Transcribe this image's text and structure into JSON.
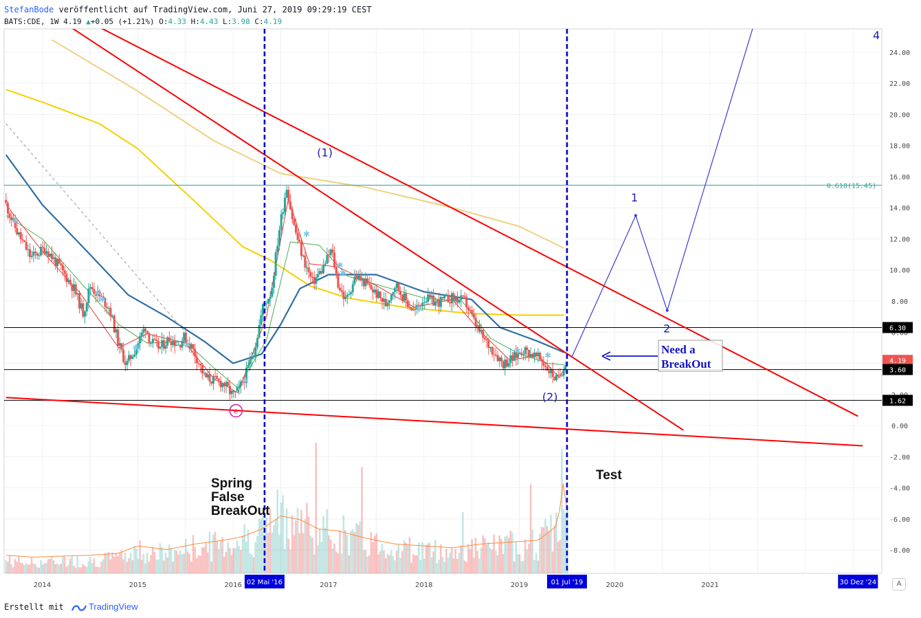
{
  "header": {
    "author": "StefanBode",
    "published": "veröffentlicht auf TradingView.com, Juni 27, 2019 09:29:19 CEST",
    "symbol": "BATS:CDE, 1W",
    "last": "4.19",
    "change": "+0.05 (+1.21%)",
    "o_label": "O:",
    "o_value": "4.33",
    "h_label": "H:",
    "h_value": "4.43",
    "l_label": "L:",
    "l_value": "3.98",
    "c_label": "C:",
    "c_value": "4.19"
  },
  "footer": {
    "created_with": "Erstellt mit",
    "brand": "TradingView",
    "auto_button": "A"
  },
  "colors": {
    "up": "#26a69a",
    "down": "#ef5350",
    "trend": "#ff0000",
    "vline": "#0000cc",
    "wave": "#3b3bd6",
    "ma_blue": "#2f6ea3",
    "ma_yellow": "#f5d000",
    "ma_tan": "#f0d080",
    "ema_green": "#4caf50",
    "ema_red": "#e53935",
    "fib": "#26a69a"
  },
  "chart_data": {
    "type": "candlestick",
    "ylim": [
      -9.5,
      25.5
    ],
    "yticks": [
      "24.00",
      "22.00",
      "20.00",
      "18.00",
      "16.00",
      "14.00",
      "12.00",
      "10.00",
      "8.00",
      "6.00",
      "4.00",
      "2.00",
      "0.00",
      "-2.00",
      "-4.00",
      "-6.00",
      "-8.00"
    ],
    "xticks": [
      "2014",
      "2015",
      "2016",
      "2017",
      "2018",
      "2019",
      "2020",
      "2021"
    ],
    "xtick_years": [
      2014,
      2015,
      2016,
      2017,
      2018,
      2019,
      2020,
      2021
    ],
    "xlim": [
      2013.6,
      2022.8
    ],
    "date_badges": [
      {
        "label": "02 Mai '16",
        "x": 2016.33
      },
      {
        "label": "01 Jul '19",
        "x": 2019.5
      },
      {
        "label": "30 Dez '24",
        "x": 2022.55
      }
    ],
    "price_badges": [
      {
        "label": "6.30",
        "y": 6.3,
        "kind": "line"
      },
      {
        "label": "4.19",
        "y": 4.19,
        "kind": "last"
      },
      {
        "label": "3.60",
        "y": 3.6,
        "kind": "line"
      },
      {
        "label": "1.62",
        "y": 1.62,
        "kind": "line"
      }
    ],
    "fib": {
      "label": "0.618(15.45)",
      "y": 15.45
    },
    "price_path": [
      [
        2013.62,
        14.5
      ],
      [
        2013.75,
        12.5
      ],
      [
        2013.9,
        10.8
      ],
      [
        2014.05,
        11.4
      ],
      [
        2014.2,
        10.2
      ],
      [
        2014.35,
        8.8
      ],
      [
        2014.45,
        7.2
      ],
      [
        2014.52,
        9.0
      ],
      [
        2014.62,
        8.3
      ],
      [
        2014.72,
        7.6
      ],
      [
        2014.82,
        5.2
      ],
      [
        2014.9,
        3.9
      ],
      [
        2015.0,
        5.0
      ],
      [
        2015.1,
        6.4
      ],
      [
        2015.15,
        5.4
      ],
      [
        2015.25,
        5.0
      ],
      [
        2015.35,
        5.6
      ],
      [
        2015.45,
        5.2
      ],
      [
        2015.5,
        5.7
      ],
      [
        2015.58,
        5.1
      ],
      [
        2015.65,
        4.2
      ],
      [
        2015.72,
        3.1
      ],
      [
        2015.82,
        2.9
      ],
      [
        2015.92,
        2.7
      ],
      [
        2016.02,
        1.9
      ],
      [
        2016.08,
        2.3
      ],
      [
        2016.15,
        3.2
      ],
      [
        2016.25,
        5.1
      ],
      [
        2016.33,
        7.6
      ],
      [
        2016.42,
        8.6
      ],
      [
        2016.5,
        12.5
      ],
      [
        2016.58,
        15.4
      ],
      [
        2016.65,
        13.0
      ],
      [
        2016.75,
        10.8
      ],
      [
        2016.85,
        9.2
      ],
      [
        2016.95,
        10.0
      ],
      [
        2017.05,
        11.3
      ],
      [
        2017.12,
        9.1
      ],
      [
        2017.2,
        8.0
      ],
      [
        2017.3,
        9.6
      ],
      [
        2017.4,
        9.2
      ],
      [
        2017.5,
        8.6
      ],
      [
        2017.62,
        7.8
      ],
      [
        2017.72,
        9.1
      ],
      [
        2017.82,
        8.1
      ],
      [
        2017.92,
        7.3
      ],
      [
        2018.02,
        8.2
      ],
      [
        2018.15,
        7.9
      ],
      [
        2018.3,
        8.2
      ],
      [
        2018.45,
        8.0
      ],
      [
        2018.55,
        6.6
      ],
      [
        2018.65,
        5.5
      ],
      [
        2018.75,
        4.8
      ],
      [
        2018.85,
        4.0
      ],
      [
        2018.95,
        4.3
      ],
      [
        2019.05,
        4.9
      ],
      [
        2019.15,
        4.6
      ],
      [
        2019.25,
        4.2
      ],
      [
        2019.35,
        3.4
      ],
      [
        2019.42,
        2.9
      ],
      [
        2019.47,
        3.6
      ],
      [
        2019.5,
        4.19
      ]
    ],
    "volume_path": [
      [
        2013.62,
        0.6
      ],
      [
        2013.9,
        0.5
      ],
      [
        2014.2,
        0.55
      ],
      [
        2014.5,
        0.6
      ],
      [
        2014.8,
        0.7
      ],
      [
        2015.0,
        1.1
      ],
      [
        2015.3,
        0.9
      ],
      [
        2015.6,
        1.2
      ],
      [
        2015.9,
        1.4
      ],
      [
        2016.1,
        1.6
      ],
      [
        2016.3,
        2.0
      ],
      [
        2016.5,
        2.7
      ],
      [
        2016.7,
        2.5
      ],
      [
        2016.9,
        2.0
      ],
      [
        2017.1,
        1.9
      ],
      [
        2017.4,
        1.5
      ],
      [
        2017.7,
        1.2
      ],
      [
        2018.0,
        1.1
      ],
      [
        2018.3,
        1.0
      ],
      [
        2018.6,
        1.2
      ],
      [
        2018.9,
        1.3
      ],
      [
        2019.2,
        1.4
      ],
      [
        2019.4,
        2.2
      ],
      [
        2019.47,
        4.8
      ],
      [
        2019.5,
        3.0
      ]
    ],
    "moving_averages": [
      {
        "name": "MA-long-tan",
        "color": "#f0d080",
        "pts": [
          [
            2014.1,
            24.8
          ],
          [
            2015.0,
            21.5
          ],
          [
            2015.8,
            18.3
          ],
          [
            2016.5,
            16.2
          ],
          [
            2017.4,
            15.3
          ],
          [
            2018.3,
            14.0
          ],
          [
            2019.0,
            12.8
          ],
          [
            2019.47,
            11.4
          ]
        ]
      },
      {
        "name": "MA-yellow",
        "color": "#f5d000",
        "pts": [
          [
            2013.62,
            21.6
          ],
          [
            2014.0,
            20.8
          ],
          [
            2014.6,
            19.4
          ],
          [
            2015.0,
            17.8
          ],
          [
            2015.6,
            14.4
          ],
          [
            2016.1,
            11.5
          ],
          [
            2016.4,
            10.6
          ],
          [
            2016.8,
            9.0
          ],
          [
            2017.2,
            8.2
          ],
          [
            2017.8,
            7.6
          ],
          [
            2018.5,
            7.2
          ],
          [
            2019.0,
            7.1
          ],
          [
            2019.47,
            7.1
          ]
        ]
      },
      {
        "name": "MA-blue",
        "color": "#2f6ea3",
        "pts": [
          [
            2013.62,
            17.4
          ],
          [
            2014.0,
            14.2
          ],
          [
            2014.5,
            11.0
          ],
          [
            2014.9,
            8.4
          ],
          [
            2015.3,
            7.0
          ],
          [
            2015.7,
            5.4
          ],
          [
            2016.0,
            4.0
          ],
          [
            2016.3,
            4.6
          ],
          [
            2016.5,
            6.5
          ],
          [
            2016.7,
            8.8
          ],
          [
            2017.0,
            9.7
          ],
          [
            2017.5,
            9.7
          ],
          [
            2018.0,
            8.6
          ],
          [
            2018.5,
            8.1
          ],
          [
            2018.8,
            6.3
          ],
          [
            2019.2,
            5.4
          ],
          [
            2019.47,
            4.7
          ]
        ]
      },
      {
        "name": "EMA-green",
        "color": "#4caf50",
        "pts": [
          [
            2013.62,
            13.5
          ],
          [
            2014.0,
            12.0
          ],
          [
            2014.4,
            9.2
          ],
          [
            2014.8,
            6.5
          ],
          [
            2015.1,
            5.3
          ],
          [
            2015.5,
            5.4
          ],
          [
            2015.8,
            3.7
          ],
          [
            2016.05,
            2.4
          ],
          [
            2016.35,
            5.5
          ],
          [
            2016.6,
            11.8
          ],
          [
            2016.9,
            11.6
          ],
          [
            2017.2,
            9.6
          ],
          [
            2017.6,
            8.9
          ],
          [
            2018.0,
            8.2
          ],
          [
            2018.4,
            8.0
          ],
          [
            2018.7,
            5.6
          ],
          [
            2019.0,
            4.6
          ],
          [
            2019.3,
            4.0
          ],
          [
            2019.47,
            3.9
          ]
        ]
      },
      {
        "name": "EMA-red",
        "color": "#e53935",
        "pts": [
          [
            2013.62,
            14.2
          ],
          [
            2014.0,
            11.2
          ],
          [
            2014.4,
            8.5
          ],
          [
            2014.8,
            5.0
          ],
          [
            2015.1,
            5.9
          ],
          [
            2015.5,
            5.3
          ],
          [
            2015.8,
            3.0
          ],
          [
            2016.05,
            2.1
          ],
          [
            2016.35,
            7.0
          ],
          [
            2016.58,
            14.6
          ],
          [
            2016.8,
            10.4
          ],
          [
            2017.1,
            10.2
          ],
          [
            2017.5,
            9.0
          ],
          [
            2017.9,
            7.6
          ],
          [
            2018.3,
            8.1
          ],
          [
            2018.6,
            6.0
          ],
          [
            2018.9,
            4.2
          ],
          [
            2019.2,
            4.5
          ],
          [
            2019.42,
            3.1
          ],
          [
            2019.5,
            3.9
          ]
        ]
      }
    ],
    "trendlines": [
      {
        "name": "upper-resistance",
        "from": [
          2014.6,
          25.6
        ],
        "to": [
          2022.55,
          0.6
        ],
        "color": "#ff0000"
      },
      {
        "name": "mid-resistance",
        "from": [
          2014.3,
          25.6
        ],
        "to": [
          2020.72,
          -0.3
        ],
        "color": "#ff0000"
      },
      {
        "name": "lower-support",
        "from": [
          2013.62,
          1.8
        ],
        "to": [
          2022.6,
          -1.3
        ],
        "color": "#ff0000"
      },
      {
        "name": "dashed-guide",
        "from": [
          2013.62,
          19.4
        ],
        "to": [
          2015.5,
          6.0
        ],
        "color": "#999999",
        "dashed": true
      }
    ],
    "wave_projection": [
      [
        2019.55,
        4.4
      ],
      [
        2020.22,
        13.5
      ],
      [
        2020.55,
        7.4
      ],
      [
        2021.45,
        25.6
      ]
    ],
    "vertical_lines": [
      2016.33,
      2019.5
    ],
    "hlines": [
      6.3,
      3.6,
      1.62
    ],
    "markers": [
      [
        2013.72,
        13.2
      ],
      [
        2014.58,
        8.5
      ],
      [
        2014.63,
        8.1
      ],
      [
        2014.98,
        5.0
      ],
      [
        2015.52,
        5.2
      ],
      [
        2016.13,
        2.9
      ],
      [
        2016.77,
        12.3
      ],
      [
        2017.12,
        10.3
      ],
      [
        2017.15,
        9.8
      ],
      [
        2017.95,
        7.5
      ],
      [
        2018.98,
        4.8
      ],
      [
        2019.3,
        4.5
      ]
    ],
    "annotations": {
      "wave_1_paren": "(1)",
      "wave_2_paren": "(2)",
      "wave_1": "1",
      "wave_2": "2",
      "wave_4": "4",
      "circle_label": "e",
      "spring_1": "Spring",
      "spring_2": "False",
      "spring_3": "BreakOut",
      "test": "Test",
      "need_1": "Need a",
      "need_2": "BreakOut"
    }
  }
}
